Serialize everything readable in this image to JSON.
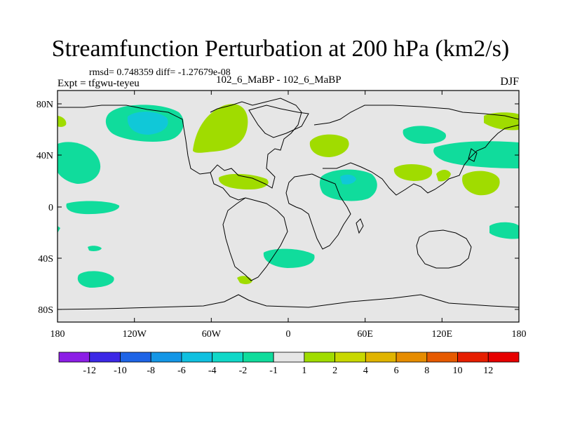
{
  "title": "Streamfunction Perturbation at 200 hPa (km2/s)",
  "stats": "rmsd= 0.748359 diff= -1.27679e-08",
  "experiment": "Expt = tfgwu-teyeu",
  "cases": "102_6_MaBP - 102_6_MaBP",
  "season": "DJF",
  "colors": {
    "background_field": "#e6e6e6",
    "pos_light": "#a0dc00",
    "neg_light": "#10dc9c",
    "neg_mid": "#10c8d8",
    "coast": "#000000"
  },
  "axes": {
    "lon_ticks": [
      "180",
      "120W",
      "60W",
      "0",
      "60E",
      "120E",
      "180"
    ],
    "lat_ticks": [
      "80N",
      "40N",
      "0",
      "40S",
      "80S"
    ]
  },
  "colorbar": {
    "labels": [
      "-12",
      "-10",
      "-8",
      "-6",
      "-4",
      "-2",
      "-1",
      "1",
      "2",
      "4",
      "6",
      "8",
      "10",
      "12"
    ],
    "colors": [
      "#8c1ee6",
      "#3c28e6",
      "#1e64e6",
      "#1496e6",
      "#10c0e0",
      "#10d8c8",
      "#10dc9c",
      "#e6e6e6",
      "#a0dc00",
      "#c8d800",
      "#e0b400",
      "#e68c00",
      "#e65a00",
      "#e61e00",
      "#e60000"
    ]
  }
}
